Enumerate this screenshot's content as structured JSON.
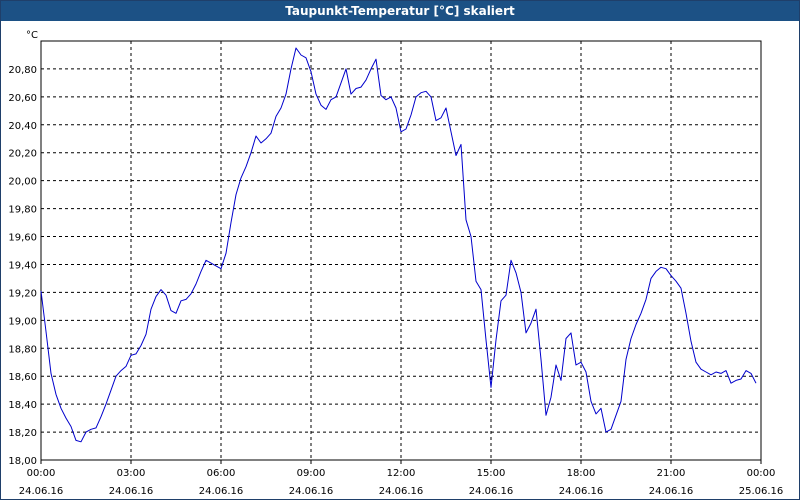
{
  "window": {
    "title": "Taupunkt-Temperatur [°C] skaliert"
  },
  "colors": {
    "titlebar": "#1c5185",
    "line": "#0000cc",
    "grid": "#000000",
    "background": "#ffffff"
  },
  "chart_data": {
    "type": "line",
    "title": "Taupunkt-Temperatur [°C] skaliert",
    "ylabel": "°C",
    "ylim": [
      18.0,
      21.0
    ],
    "xlim": [
      "2016-06-24 00:00",
      "2016-06-25 00:00"
    ],
    "grid": true,
    "y_ticks": [
      "18,00",
      "18,20",
      "18,40",
      "18,60",
      "18,80",
      "19,00",
      "19,20",
      "19,40",
      "19,60",
      "19,80",
      "20,00",
      "20,20",
      "20,40",
      "20,60",
      "20,80"
    ],
    "x_ticks": [
      {
        "time": "00:00",
        "date": "24.06.16"
      },
      {
        "time": "03:00",
        "date": "24.06.16"
      },
      {
        "time": "06:00",
        "date": "24.06.16"
      },
      {
        "time": "09:00",
        "date": "24.06.16"
      },
      {
        "time": "12:00",
        "date": "24.06.16"
      },
      {
        "time": "15:00",
        "date": "24.06.16"
      },
      {
        "time": "18:00",
        "date": "24.06.16"
      },
      {
        "time": "21:00",
        "date": "24.06.16"
      },
      {
        "time": "00:00",
        "date": "25.06.16"
      }
    ],
    "series": [
      {
        "points": [
          [
            "2016-06-24 00:00",
            19.21
          ],
          [
            "2016-06-24 00:10",
            18.92
          ],
          [
            "2016-06-24 00:20",
            18.62
          ],
          [
            "2016-06-24 00:30",
            18.47
          ],
          [
            "2016-06-24 00:40",
            18.37
          ],
          [
            "2016-06-24 00:50",
            18.3
          ],
          [
            "2016-06-24 01:00",
            18.24
          ],
          [
            "2016-06-24 01:10",
            18.14
          ],
          [
            "2016-06-24 01:20",
            18.13
          ],
          [
            "2016-06-24 01:30",
            18.2
          ],
          [
            "2016-06-24 01:40",
            18.22
          ],
          [
            "2016-06-24 01:50",
            18.23
          ],
          [
            "2016-06-24 02:00",
            18.31
          ],
          [
            "2016-06-24 02:10",
            18.4
          ],
          [
            "2016-06-24 02:20",
            18.5
          ],
          [
            "2016-06-24 02:30",
            18.6
          ],
          [
            "2016-06-24 02:40",
            18.64
          ],
          [
            "2016-06-24 02:50",
            18.67
          ],
          [
            "2016-06-24 03:00",
            18.75
          ],
          [
            "2016-06-24 03:10",
            18.76
          ],
          [
            "2016-06-24 03:20",
            18.82
          ],
          [
            "2016-06-24 03:30",
            18.9
          ],
          [
            "2016-06-24 03:40",
            19.08
          ],
          [
            "2016-06-24 03:50",
            19.17
          ],
          [
            "2016-06-24 04:00",
            19.22
          ],
          [
            "2016-06-24 04:10",
            19.18
          ],
          [
            "2016-06-24 04:20",
            19.07
          ],
          [
            "2016-06-24 04:30",
            19.05
          ],
          [
            "2016-06-24 04:40",
            19.14
          ],
          [
            "2016-06-24 04:50",
            19.15
          ],
          [
            "2016-06-24 05:00",
            19.19
          ],
          [
            "2016-06-24 05:10",
            19.26
          ],
          [
            "2016-06-24 05:20",
            19.35
          ],
          [
            "2016-06-24 05:30",
            19.43
          ],
          [
            "2016-06-24 05:40",
            19.41
          ],
          [
            "2016-06-24 05:50",
            19.39
          ],
          [
            "2016-06-24 06:00",
            19.37
          ],
          [
            "2016-06-24 06:10",
            19.48
          ],
          [
            "2016-06-24 06:20",
            19.7
          ],
          [
            "2016-06-24 06:30",
            19.9
          ],
          [
            "2016-06-24 06:40",
            20.02
          ],
          [
            "2016-06-24 06:50",
            20.1
          ],
          [
            "2016-06-24 07:00",
            20.2
          ],
          [
            "2016-06-24 07:10",
            20.32
          ],
          [
            "2016-06-24 07:20",
            20.27
          ],
          [
            "2016-06-24 07:30",
            20.3
          ],
          [
            "2016-06-24 07:40",
            20.34
          ],
          [
            "2016-06-24 07:50",
            20.46
          ],
          [
            "2016-06-24 08:00",
            20.52
          ],
          [
            "2016-06-24 08:10",
            20.62
          ],
          [
            "2016-06-24 08:20",
            20.8
          ],
          [
            "2016-06-24 08:30",
            20.95
          ],
          [
            "2016-06-24 08:40",
            20.9
          ],
          [
            "2016-06-24 08:50",
            20.88
          ],
          [
            "2016-06-24 09:00",
            20.78
          ],
          [
            "2016-06-24 09:10",
            20.62
          ],
          [
            "2016-06-24 09:20",
            20.54
          ],
          [
            "2016-06-24 09:30",
            20.51
          ],
          [
            "2016-06-24 09:40",
            20.58
          ],
          [
            "2016-06-24 09:50",
            20.6
          ],
          [
            "2016-06-24 10:00",
            20.7
          ],
          [
            "2016-06-24 10:10",
            20.8
          ],
          [
            "2016-06-24 10:20",
            20.62
          ],
          [
            "2016-06-24 10:30",
            20.66
          ],
          [
            "2016-06-24 10:40",
            20.67
          ],
          [
            "2016-06-24 10:50",
            20.72
          ],
          [
            "2016-06-24 11:00",
            20.8
          ],
          [
            "2016-06-24 11:10",
            20.87
          ],
          [
            "2016-06-24 11:20",
            20.61
          ],
          [
            "2016-06-24 11:30",
            20.58
          ],
          [
            "2016-06-24 11:40",
            20.6
          ],
          [
            "2016-06-24 11:50",
            20.52
          ],
          [
            "2016-06-24 12:00",
            20.35
          ],
          [
            "2016-06-24 12:10",
            20.37
          ],
          [
            "2016-06-24 12:20",
            20.47
          ],
          [
            "2016-06-24 12:30",
            20.6
          ],
          [
            "2016-06-24 12:40",
            20.63
          ],
          [
            "2016-06-24 12:50",
            20.64
          ],
          [
            "2016-06-24 13:00",
            20.6
          ],
          [
            "2016-06-24 13:10",
            20.43
          ],
          [
            "2016-06-24 13:20",
            20.45
          ],
          [
            "2016-06-24 13:30",
            20.52
          ],
          [
            "2016-06-24 13:40",
            20.35
          ],
          [
            "2016-06-24 13:50",
            20.18
          ],
          [
            "2016-06-24 14:00",
            20.26
          ],
          [
            "2016-06-24 14:10",
            19.72
          ],
          [
            "2016-06-24 14:20",
            19.6
          ],
          [
            "2016-06-24 14:30",
            19.28
          ],
          [
            "2016-06-24 14:40",
            19.22
          ],
          [
            "2016-06-24 14:50",
            18.86
          ],
          [
            "2016-06-24 15:00",
            18.52
          ],
          [
            "2016-06-24 15:10",
            18.86
          ],
          [
            "2016-06-24 15:20",
            19.14
          ],
          [
            "2016-06-24 15:30",
            19.18
          ],
          [
            "2016-06-24 15:40",
            19.43
          ],
          [
            "2016-06-24 15:50",
            19.34
          ],
          [
            "2016-06-24 16:00",
            19.2
          ],
          [
            "2016-06-24 16:10",
            18.91
          ],
          [
            "2016-06-24 16:20",
            18.98
          ],
          [
            "2016-06-24 16:30",
            19.08
          ],
          [
            "2016-06-24 16:40",
            18.72
          ],
          [
            "2016-06-24 16:50",
            18.32
          ],
          [
            "2016-06-24 17:00",
            18.45
          ],
          [
            "2016-06-24 17:10",
            18.68
          ],
          [
            "2016-06-24 17:20",
            18.57
          ],
          [
            "2016-06-24 17:30",
            18.87
          ],
          [
            "2016-06-24 17:40",
            18.91
          ],
          [
            "2016-06-24 17:50",
            18.68
          ],
          [
            "2016-06-24 18:00",
            18.7
          ],
          [
            "2016-06-24 18:10",
            18.63
          ],
          [
            "2016-06-24 18:20",
            18.42
          ],
          [
            "2016-06-24 18:30",
            18.33
          ],
          [
            "2016-06-24 18:40",
            18.37
          ],
          [
            "2016-06-24 18:50",
            18.2
          ],
          [
            "2016-06-24 19:00",
            18.22
          ],
          [
            "2016-06-24 19:10",
            18.32
          ],
          [
            "2016-06-24 19:20",
            18.42
          ],
          [
            "2016-06-24 19:30",
            18.72
          ],
          [
            "2016-06-24 19:40",
            18.87
          ],
          [
            "2016-06-24 19:50",
            18.97
          ],
          [
            "2016-06-24 20:00",
            19.05
          ],
          [
            "2016-06-24 20:10",
            19.15
          ],
          [
            "2016-06-24 20:20",
            19.3
          ],
          [
            "2016-06-24 20:30",
            19.35
          ],
          [
            "2016-06-24 20:40",
            19.38
          ],
          [
            "2016-06-24 20:50",
            19.37
          ],
          [
            "2016-06-24 21:00",
            19.32
          ],
          [
            "2016-06-24 21:10",
            19.28
          ],
          [
            "2016-06-24 21:20",
            19.23
          ],
          [
            "2016-06-24 21:30",
            19.05
          ],
          [
            "2016-06-24 21:40",
            18.85
          ],
          [
            "2016-06-24 21:50",
            18.7
          ],
          [
            "2016-06-24 22:00",
            18.65
          ],
          [
            "2016-06-24 22:10",
            18.63
          ],
          [
            "2016-06-24 22:20",
            18.61
          ],
          [
            "2016-06-24 22:30",
            18.63
          ],
          [
            "2016-06-24 22:40",
            18.62
          ],
          [
            "2016-06-24 22:50",
            18.64
          ],
          [
            "2016-06-24 23:00",
            18.55
          ],
          [
            "2016-06-24 23:10",
            18.57
          ],
          [
            "2016-06-24 23:20",
            18.58
          ],
          [
            "2016-06-24 23:30",
            18.64
          ],
          [
            "2016-06-24 23:40",
            18.62
          ],
          [
            "2016-06-24 23:50",
            18.55
          ]
        ]
      }
    ]
  }
}
